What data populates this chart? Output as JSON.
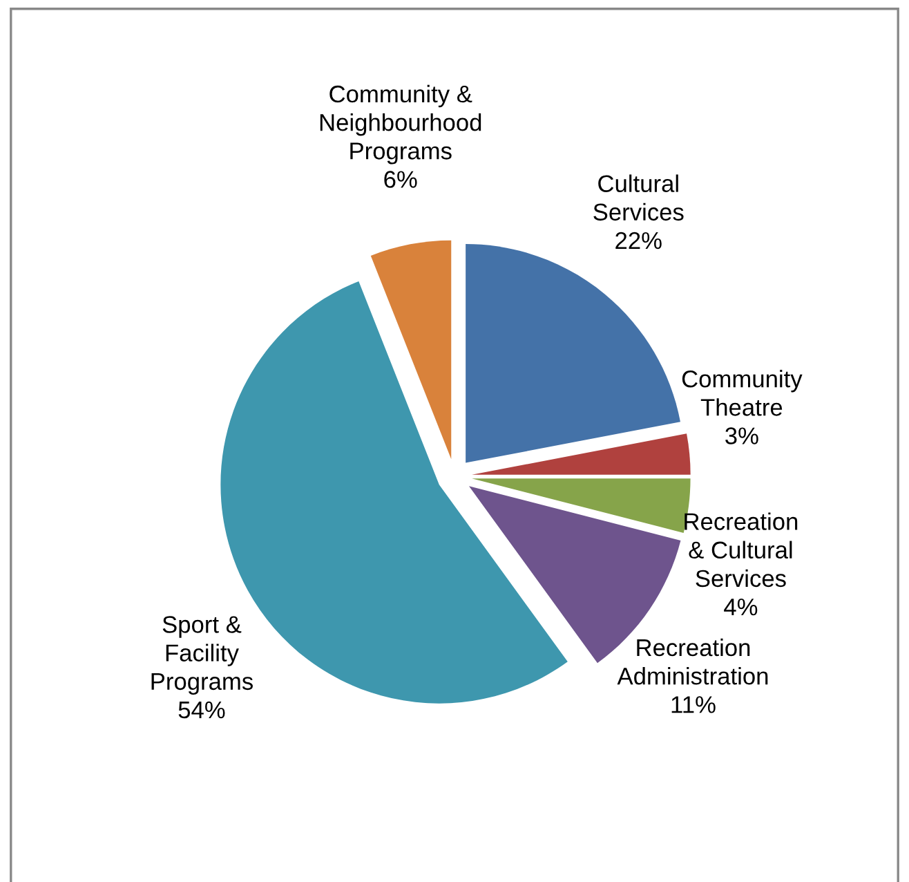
{
  "chart_data": {
    "type": "pie",
    "categories": [
      "Cultural\nServices",
      "Community\nTheatre",
      "Recreation\n& Cultural\nServices",
      "Recreation\nAdministration",
      "Sport &\nFacility\nPrograms",
      "Community &\nNeighbourhood\nPrograms"
    ],
    "values": [
      22,
      3,
      4,
      11,
      54,
      6
    ],
    "colors": [
      "#4472a8",
      "#b0413e",
      "#86a44a",
      "#6e548d",
      "#3e97ae",
      "#d9823b"
    ],
    "value_labels": [
      "22%",
      "3%",
      "4%",
      "11%",
      "54%",
      "6%"
    ]
  }
}
